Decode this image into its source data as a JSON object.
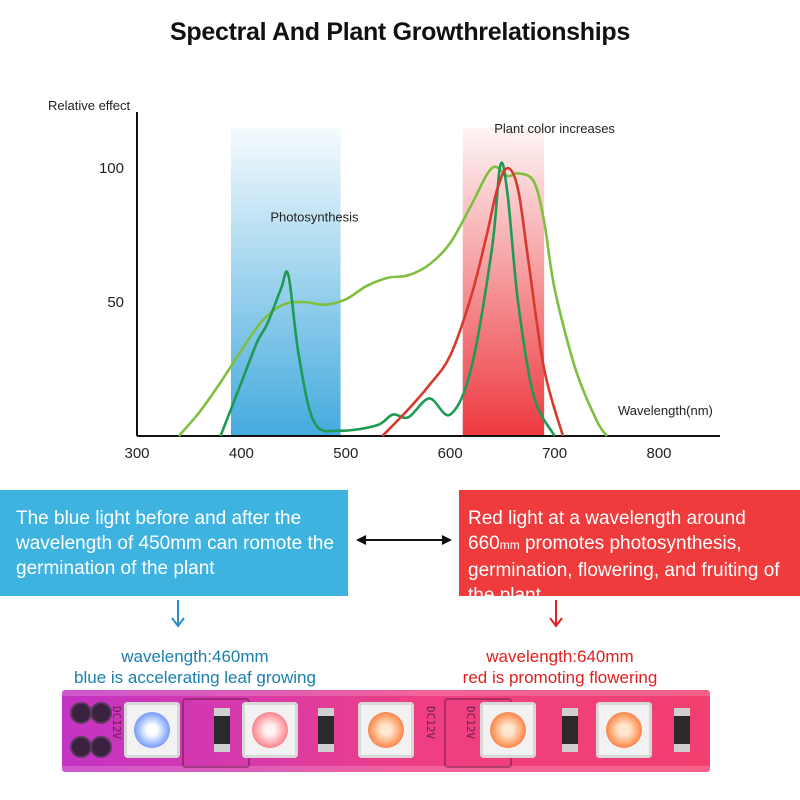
{
  "title": "Spectral And Plant  Growthrelationships",
  "chart_data": {
    "type": "line",
    "ylabel": "Relative effect",
    "xlabel": "Wavelength(nm)",
    "xlim": [
      300,
      800
    ],
    "ylim": [
      0,
      110
    ],
    "x_ticks": [
      "300",
      "400",
      "500",
      "600",
      "700",
      "800"
    ],
    "y_ticks": [
      "100",
      "50"
    ],
    "annotations": [
      {
        "text": "Photosynthesis",
        "x": 470,
        "y": 80
      },
      {
        "text": "Plant color increases",
        "x": 700,
        "y": 113
      }
    ],
    "highlight_bands": [
      {
        "from": 390,
        "to": 495,
        "color": "#3aa6dc"
      },
      {
        "from": 612,
        "to": 690,
        "color": "#ec2f35"
      }
    ],
    "series": [
      {
        "color": "#7fbf3f",
        "x": [
          340,
          360,
          380,
          400,
          420,
          440,
          460,
          480,
          500,
          520,
          540,
          560,
          580,
          600,
          620,
          640,
          655,
          665,
          680,
          690,
          700,
          720,
          740,
          750
        ],
        "y": [
          0,
          9,
          20,
          32,
          43,
          49,
          50,
          49,
          51,
          56,
          59,
          60,
          64,
          72,
          86,
          100,
          97,
          98,
          95,
          80,
          55,
          25,
          6,
          0
        ]
      },
      {
        "color": "#1e9a55",
        "x": [
          380,
          400,
          415,
          425,
          438,
          445,
          455,
          470,
          495,
          530,
          545,
          560,
          580,
          600,
          620,
          640,
          648,
          655,
          665,
          680,
          700
        ],
        "y": [
          0,
          20,
          35,
          42,
          55,
          60,
          30,
          5,
          2,
          4,
          8,
          7,
          14,
          8,
          25,
          70,
          101,
          90,
          50,
          15,
          0
        ]
      },
      {
        "color": "#d63a2d",
        "x": [
          535,
          560,
          580,
          600,
          620,
          635,
          645,
          655,
          665,
          675,
          690,
          708
        ],
        "y": [
          0,
          10,
          19,
          30,
          52,
          75,
          92,
          100,
          92,
          65,
          25,
          0
        ]
      }
    ]
  },
  "info_boxes": {
    "blue_text": "The blue light before and after the wavelength of 450mm can romote the germination of the plant",
    "red_text_main": "Red light at a wavelength around 660",
    "red_text_unit": "mm",
    "red_text_rest": "promotes photosynthesis, germination, flowering, and fruiting of the plant",
    "blue_color": "#3fb3e0",
    "red_color": "#ef3b3b"
  },
  "wavelength_labels": {
    "blue_line1": "wavelength:460mm",
    "blue_line2": "blue is accelerating leaf growing",
    "red_line1": "wavelength:640mm",
    "red_line2": "red is promoting flowering"
  },
  "led_strip": {
    "dc_label": "DC12V"
  }
}
